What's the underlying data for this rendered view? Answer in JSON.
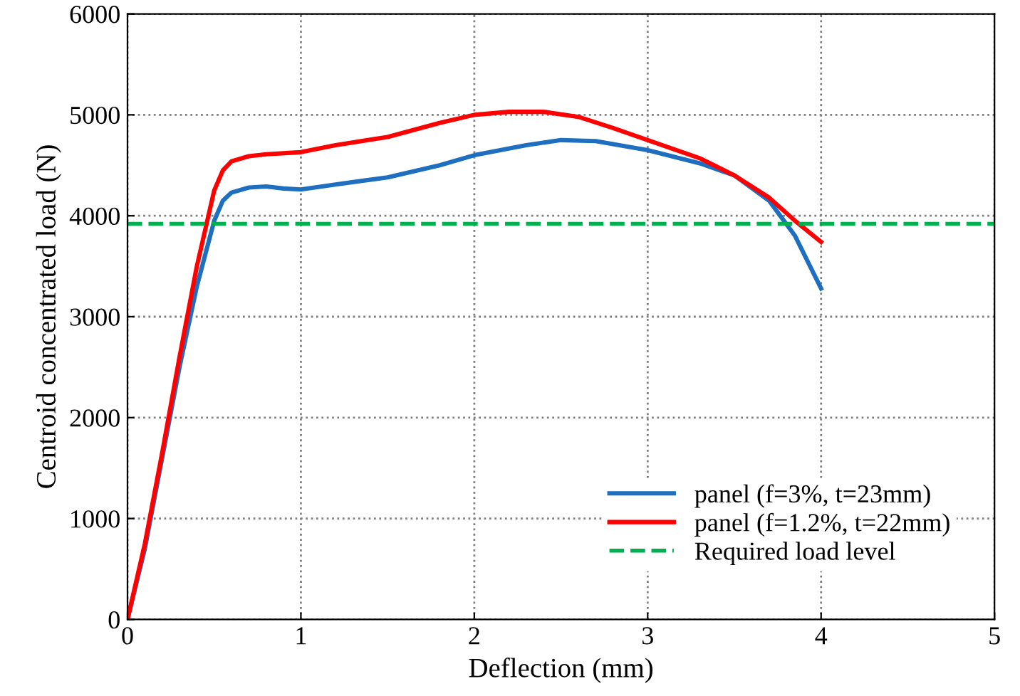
{
  "chart_data": {
    "type": "line",
    "xlabel": "Deflection (mm)",
    "ylabel": "Centroid concentrated load (N)",
    "xlim": [
      0,
      5
    ],
    "xticks": [
      0,
      1,
      2,
      3,
      4,
      5
    ],
    "ylim": [
      0,
      6000
    ],
    "yticks": [
      0,
      1000,
      2000,
      3000,
      4000,
      5000,
      6000
    ],
    "grid": true,
    "legend": "bottom right",
    "line_style": "solid",
    "marker": "none",
    "series": [
      {
        "name": "panel (f=3%, t=23mm)",
        "color": "#1f6fc0",
        "x": [
          0,
          0.1,
          0.2,
          0.3,
          0.4,
          0.5,
          0.55,
          0.6,
          0.7,
          0.8,
          0.9,
          1.0,
          1.2,
          1.5,
          1.8,
          2.0,
          2.3,
          2.5,
          2.7,
          3.0,
          3.3,
          3.5,
          3.7,
          3.85,
          4.0
        ],
        "values": [
          0,
          700,
          1600,
          2500,
          3300,
          3950,
          4150,
          4230,
          4280,
          4290,
          4270,
          4260,
          4310,
          4380,
          4500,
          4600,
          4700,
          4750,
          4740,
          4650,
          4520,
          4400,
          4150,
          3800,
          3280
        ]
      },
      {
        "name": "panel (f=1.2%, t=22mm)",
        "color": "#ff0000",
        "x": [
          0,
          0.1,
          0.2,
          0.3,
          0.4,
          0.5,
          0.55,
          0.6,
          0.7,
          0.8,
          1.0,
          1.2,
          1.5,
          1.8,
          2.0,
          2.2,
          2.4,
          2.6,
          2.8,
          3.0,
          3.3,
          3.5,
          3.7,
          3.85,
          4.0
        ],
        "values": [
          0,
          750,
          1650,
          2600,
          3500,
          4250,
          4450,
          4540,
          4590,
          4610,
          4630,
          4700,
          4780,
          4920,
          5000,
          5030,
          5030,
          4980,
          4870,
          4750,
          4570,
          4400,
          4180,
          3950,
          3740
        ]
      }
    ],
    "ref_lines": [
      {
        "axis": "y",
        "value": 3920,
        "label": "Required load level",
        "color": "#00b050",
        "line_style": "dashed"
      }
    ]
  }
}
